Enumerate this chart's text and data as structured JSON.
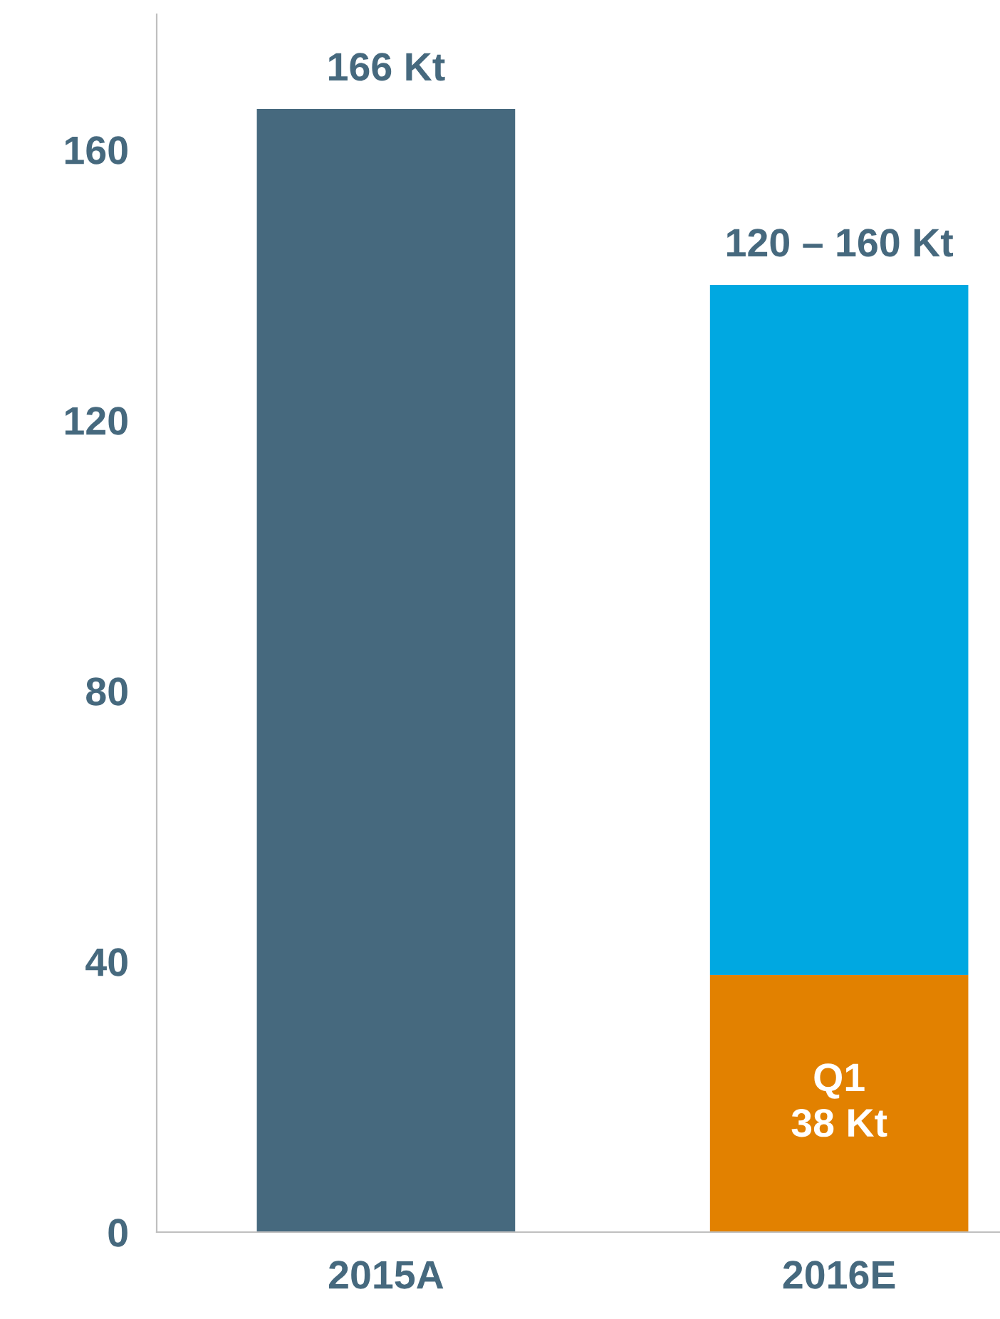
{
  "chart_data": {
    "type": "bar",
    "stacked": true,
    "categories": [
      "2015A",
      "2016E"
    ],
    "series": [
      {
        "color": "#46697e",
        "values": [
          166,
          null
        ]
      },
      {
        "color": "#e28100",
        "values": [
          null,
          38
        ],
        "value_labels": [
          null,
          "Q1\n38 Kt"
        ]
      },
      {
        "color": "#00a8e1",
        "values": [
          null,
          102
        ]
      }
    ],
    "totals": [
      "166 Kt",
      "120 – 160 Kt"
    ],
    "ylim": [
      0,
      180
    ],
    "yticks": [
      0,
      40,
      80,
      120,
      160
    ],
    "grid": false
  }
}
